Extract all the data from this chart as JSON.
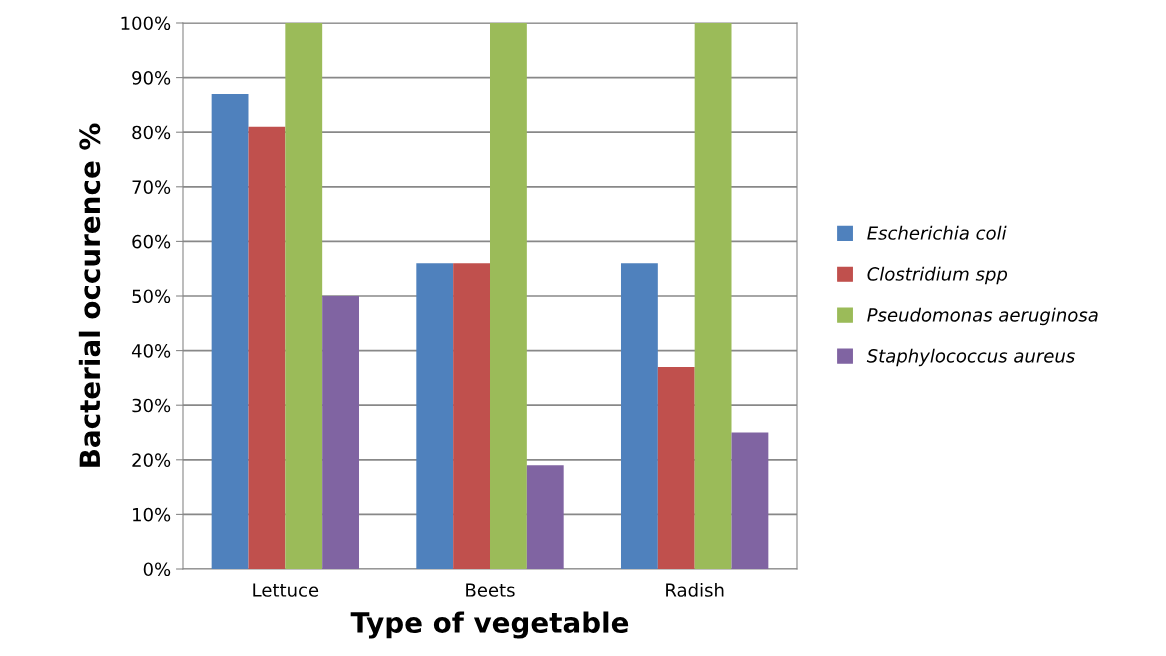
{
  "chart_data": {
    "type": "bar",
    "xlabel": "Type of vegetable",
    "ylabel": "Bacterial occurence %",
    "categories": [
      "Lettuce",
      "Beets",
      "Radish"
    ],
    "series": [
      {
        "name": "Escherichia coli",
        "color": "#4f81bd",
        "values": [
          87,
          56,
          56
        ]
      },
      {
        "name": "Clostridium spp",
        "color": "#c0504d",
        "values": [
          81,
          56,
          37
        ]
      },
      {
        "name": "Pseudomonas aeruginosa",
        "color": "#9bbb59",
        "values": [
          100,
          100,
          100
        ]
      },
      {
        "name": "Staphylococcus aureus",
        "color": "#8064a2",
        "values": [
          50,
          19,
          25
        ]
      }
    ],
    "ylim": [
      0,
      100
    ],
    "yticks": [
      {
        "value": 0,
        "label": "0%"
      },
      {
        "value": 10,
        "label": "10%"
      },
      {
        "value": 20,
        "label": "20%"
      },
      {
        "value": 30,
        "label": "30%"
      },
      {
        "value": 40,
        "label": "40%"
      },
      {
        "value": 50,
        "label": "50%"
      },
      {
        "value": 60,
        "label": "60%"
      },
      {
        "value": 70,
        "label": "70%"
      },
      {
        "value": 80,
        "label": "80%"
      },
      {
        "value": 90,
        "label": "90%"
      },
      {
        "value": 100,
        "label": "100%"
      }
    ],
    "grid": "y",
    "legend": "right"
  }
}
